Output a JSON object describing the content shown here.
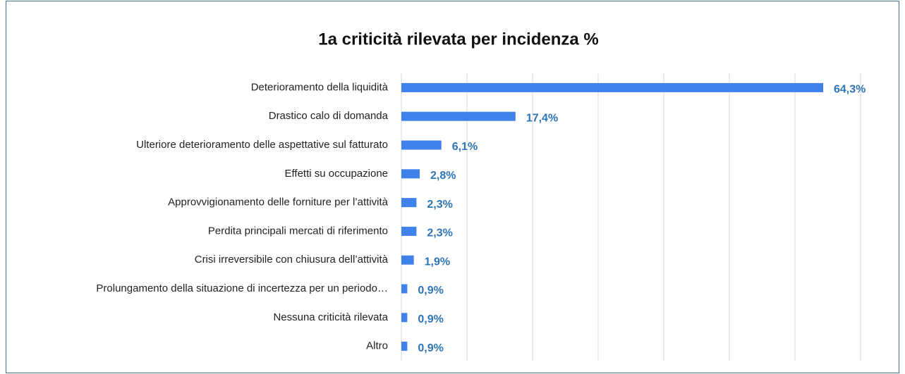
{
  "chart_data": {
    "type": "bar",
    "orientation": "horizontal",
    "title": "1a criticità rilevata per incidenza %",
    "categories": [
      "Deterioramento della liquidità",
      "Drastico calo di domanda",
      "Ulteriore deterioramento delle aspettative sul fatturato",
      "Effetti su occupazione",
      "Approvvigionamento delle forniture per l’attività",
      "Perdita principali mercati di riferimento",
      "Crisi irreversibile con chiusura dell’attività",
      "Prolungamento della situazione di incertezza per un periodo…",
      "Nessuna criticità rilevata",
      "Altro"
    ],
    "values": [
      64.3,
      17.4,
      6.1,
      2.8,
      2.3,
      2.3,
      1.9,
      0.9,
      0.9,
      0.9
    ],
    "value_labels": [
      "64,3%",
      "17,4%",
      "6,1%",
      "2,8%",
      "2,3%",
      "2,3%",
      "1,9%",
      "0,9%",
      "0,9%",
      "0,9%"
    ],
    "color": "#3f82ec",
    "label_color": "#2e75b6",
    "xlim": [
      0,
      70
    ],
    "xticks": [
      0,
      10,
      20,
      30,
      40,
      50,
      60,
      70
    ],
    "grid": true
  }
}
